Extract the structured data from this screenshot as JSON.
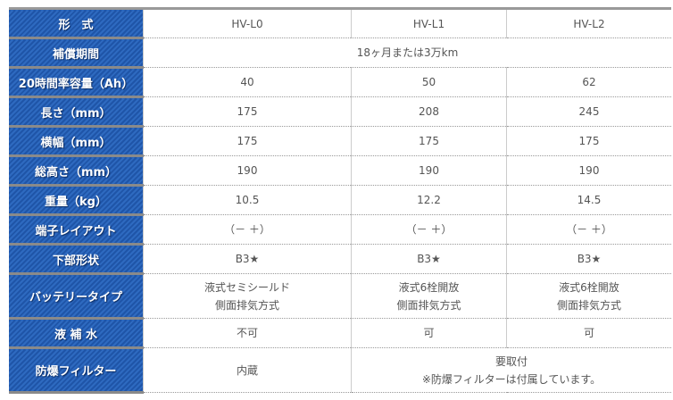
{
  "headers": {
    "model": "形　式",
    "warranty": "補償期間",
    "capacity": "20時間率容量（Ah）",
    "length": "長さ（mm）",
    "width": "横幅（mm）",
    "height": "総高さ（mm）",
    "weight": "重量（kg）",
    "terminal": "端子レイアウト",
    "bottom": "下部形状",
    "type": "バッテリータイプ",
    "water": "液 補 水",
    "filter": "防爆フィルター"
  },
  "models": [
    "HV-L0",
    "HV-L1",
    "HV-L2"
  ],
  "warranty": "18ヶ月または3万km",
  "capacity": [
    "40",
    "50",
    "62"
  ],
  "length": [
    "175",
    "208",
    "245"
  ],
  "width": [
    "175",
    "175",
    "175"
  ],
  "height": [
    "190",
    "190",
    "190"
  ],
  "weight": [
    "10.5",
    "12.2",
    "14.5"
  ],
  "terminal": [
    "（－ ＋）",
    "（－ ＋）",
    "（－ ＋）"
  ],
  "bottom": [
    "B3★",
    "B3★",
    "B3★"
  ],
  "type": [
    [
      "液式セミシールド",
      "側面排気方式"
    ],
    [
      "液式6栓開放",
      "側面排気方式"
    ],
    [
      "液式6栓開放",
      "側面排気方式"
    ]
  ],
  "water": [
    "不可",
    "可",
    "可"
  ],
  "filter": {
    "l0": "内蔵",
    "others_line1": "要取付",
    "others_line2": "※防爆フィルターは付属しています。"
  }
}
